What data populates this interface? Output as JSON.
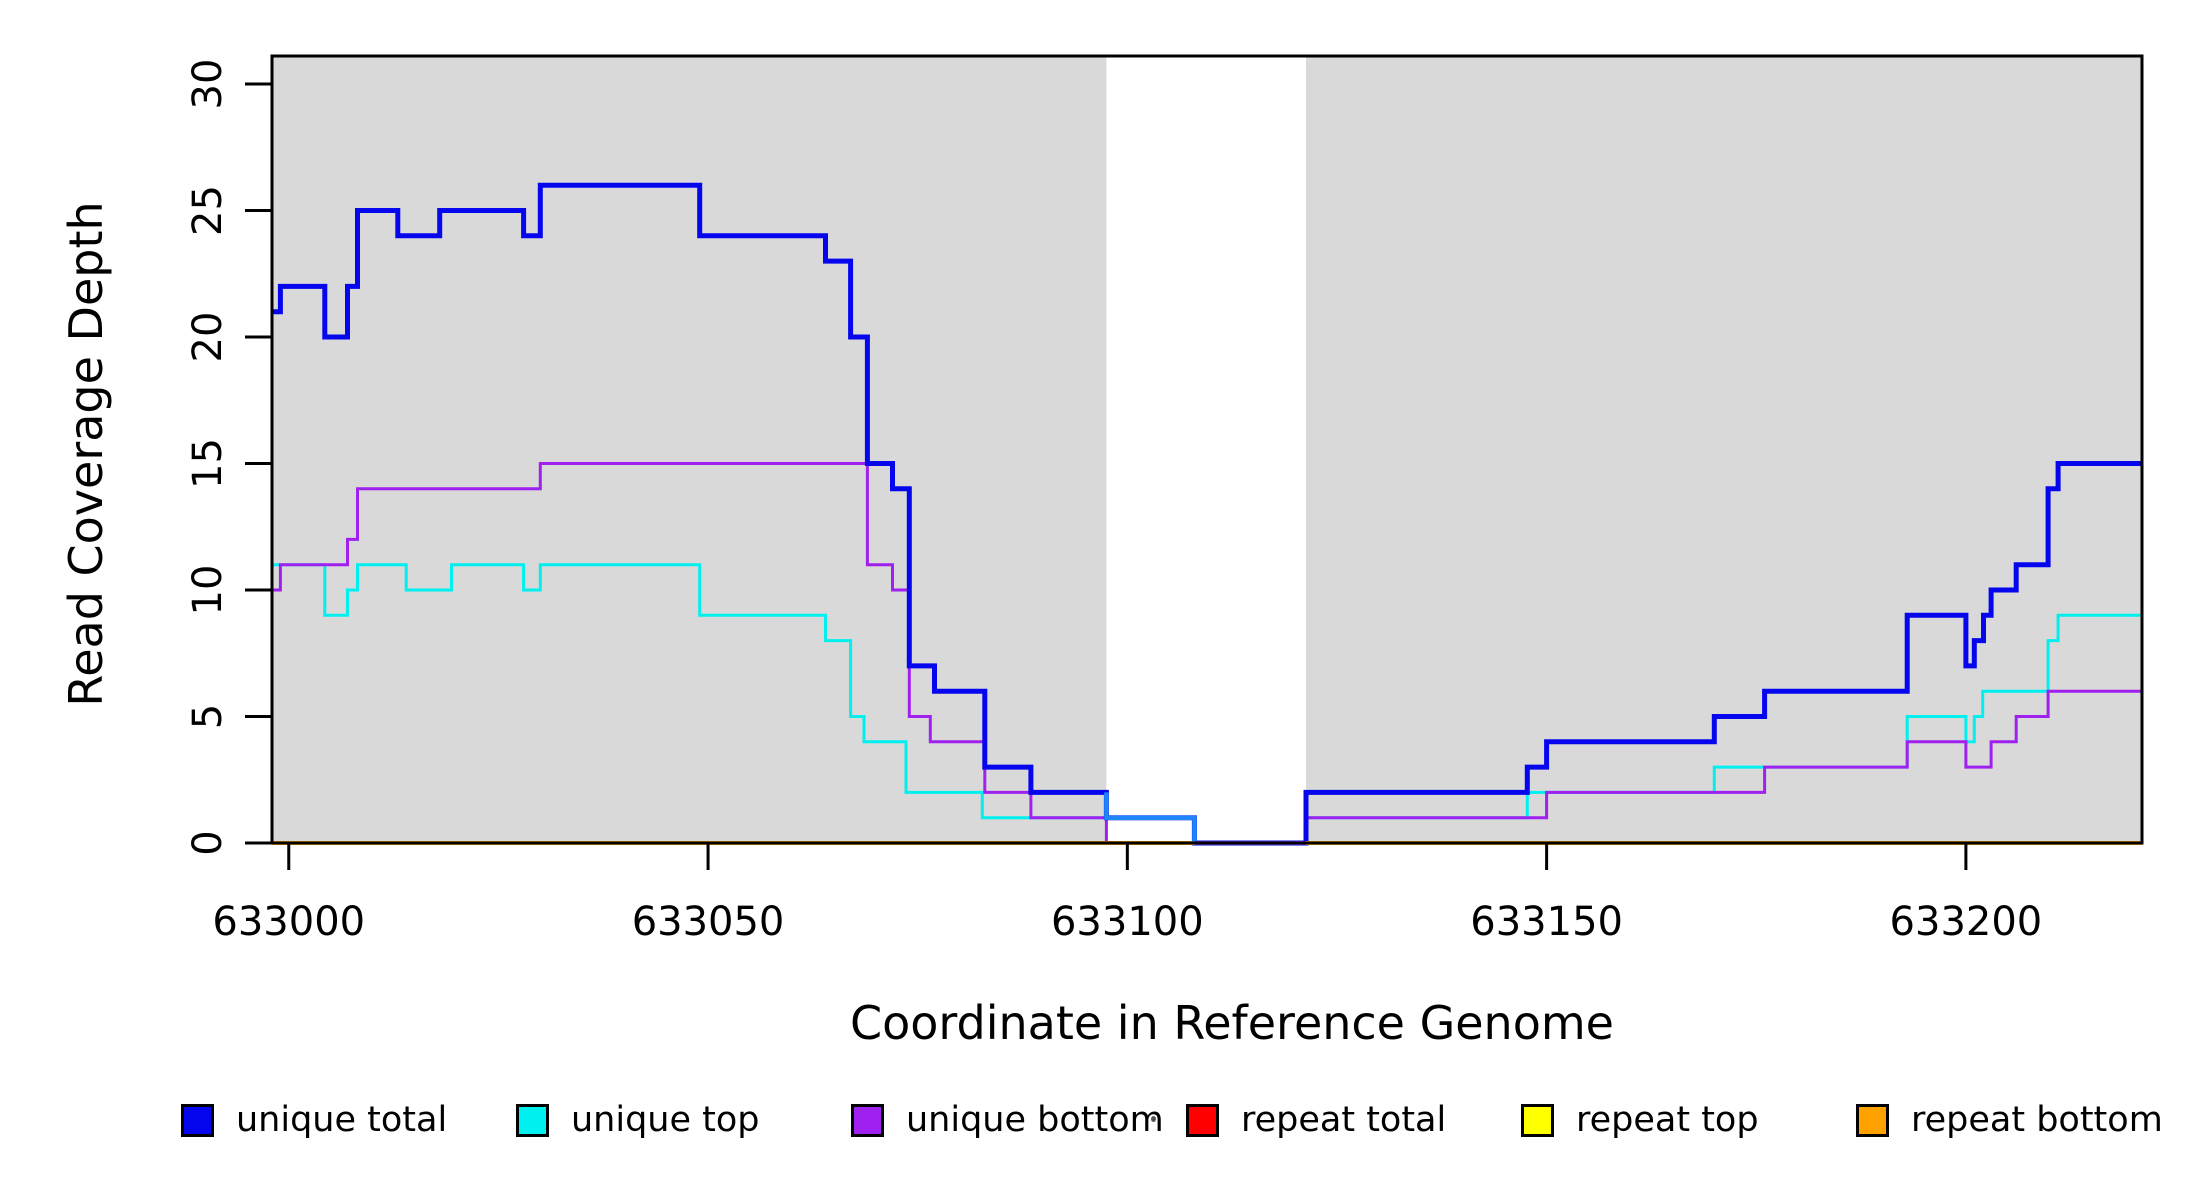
{
  "figure": {
    "y_axis_title": "Read Coverage Depth",
    "x_axis_title": "Coordinate in Reference Genome"
  },
  "colors": {
    "plot_background": "#d9d9d9",
    "gap_background": "#ffffff",
    "axis": "#000000",
    "unique_total": "#0505ee",
    "unique_top": "#00f0f0",
    "unique_bottom": "#a020f0",
    "repeat_total": "#ff0000",
    "repeat_top": "#ffff00",
    "repeat_bottom": "#ffa200",
    "overlap_blue": "#1e86fa",
    "zero_pink": "#f96a8d",
    "zero_violet": "#6638f0"
  },
  "legend": {
    "items": [
      {
        "label": "unique total",
        "color": "#0505ee"
      },
      {
        "label": "unique top",
        "color": "#00f0f0"
      },
      {
        "label": "unique bottom",
        "color": "#a020f0"
      },
      {
        "label": "repeat total",
        "color": "#ff0000"
      },
      {
        "label": "repeat top",
        "color": "#ffff00"
      },
      {
        "label": "repeat bottom",
        "color": "#ffa200"
      }
    ]
  },
  "chart_data": {
    "type": "line",
    "subtype": "step-hv",
    "title": "",
    "xlabel": "Coordinate in Reference Genome",
    "ylabel": "Read Coverage Depth",
    "xlim": [
      632998,
      633221
    ],
    "ylim": [
      0,
      31
    ],
    "x_ticks": [
      633000,
      633050,
      633100,
      633150,
      633200
    ],
    "y_ticks": [
      0,
      5,
      10,
      15,
      20,
      25,
      30
    ],
    "grid": false,
    "legend_position": "bottom",
    "shaded_regions": [
      {
        "start": 632998,
        "end": 633097.5
      },
      {
        "start": 633121.3,
        "end": 633221
      }
    ],
    "gap_region": {
      "start": 633097.5,
      "end": 633121.3
    },
    "series": [
      {
        "name": "repeat total",
        "color": "#ff0000",
        "width": 3,
        "points": [
          [
            632998,
            0
          ]
        ],
        "end": 633221
      },
      {
        "name": "repeat top",
        "color": "#ffff00",
        "width": 3,
        "points": [
          [
            632998,
            0
          ]
        ],
        "end": 633221
      },
      {
        "name": "unique top",
        "color": "#00f0f0",
        "width": 3,
        "points": [
          [
            632998,
            11
          ],
          [
            633004.3,
            9
          ],
          [
            633007,
            10
          ],
          [
            633008.2,
            11
          ],
          [
            633014,
            10
          ],
          [
            633019.4,
            11
          ],
          [
            633028,
            10
          ],
          [
            633030,
            11
          ],
          [
            633049,
            9
          ],
          [
            633064,
            8
          ],
          [
            633067,
            5
          ],
          [
            633068.6,
            4
          ],
          [
            633073.6,
            2
          ],
          [
            633082.7,
            1
          ],
          [
            633108,
            0
          ],
          [
            633121.3,
            1
          ],
          [
            633147.7,
            2
          ],
          [
            633170,
            3
          ],
          [
            633193,
            5
          ],
          [
            633200,
            4
          ],
          [
            633201,
            5
          ],
          [
            633202,
            6
          ],
          [
            633209.8,
            8
          ],
          [
            633211,
            9
          ]
        ],
        "end": 633221
      },
      {
        "name": "unique bottom",
        "color": "#a020f0",
        "width": 3,
        "points": [
          [
            632998,
            10
          ],
          [
            632999,
            11
          ],
          [
            633007,
            12
          ],
          [
            633008.2,
            14
          ],
          [
            633030,
            15
          ],
          [
            633069,
            11
          ],
          [
            633072,
            10
          ],
          [
            633074,
            5
          ],
          [
            633076.5,
            4
          ],
          [
            633083,
            2
          ],
          [
            633088.5,
            1
          ],
          [
            633097.5,
            0
          ],
          [
            633121.3,
            1
          ],
          [
            633150,
            2
          ],
          [
            633176,
            3
          ],
          [
            633193,
            4
          ],
          [
            633200,
            3
          ],
          [
            633203,
            4
          ],
          [
            633206,
            5
          ],
          [
            633209.8,
            6
          ]
        ],
        "end": 633221
      },
      {
        "name": "unique total",
        "color": "#0505ee",
        "width": 5,
        "points": [
          [
            632998,
            21
          ],
          [
            632999,
            22
          ],
          [
            633004.3,
            20
          ],
          [
            633007,
            22
          ],
          [
            633008.2,
            25
          ],
          [
            633013,
            24
          ],
          [
            633018,
            25
          ],
          [
            633028,
            24
          ],
          [
            633030,
            26
          ],
          [
            633049,
            24
          ],
          [
            633064,
            23
          ],
          [
            633067,
            20
          ],
          [
            633069,
            15
          ],
          [
            633072,
            14
          ],
          [
            633074,
            7
          ],
          [
            633077,
            6
          ],
          [
            633083,
            3
          ],
          [
            633088.5,
            2
          ],
          [
            633097.5,
            1
          ],
          [
            633108,
            0
          ],
          [
            633121.3,
            2
          ],
          [
            633147.7,
            3
          ],
          [
            633150,
            4
          ],
          [
            633170,
            5
          ],
          [
            633176,
            6
          ],
          [
            633193,
            9
          ],
          [
            633200,
            7
          ],
          [
            633201,
            8
          ],
          [
            633202.1,
            9
          ],
          [
            633203,
            10
          ],
          [
            633206,
            11
          ],
          [
            633209.8,
            14
          ],
          [
            633211,
            15
          ]
        ],
        "end": 633221
      },
      {
        "name": "repeat bottom",
        "color": "#ffa200",
        "width": 4,
        "points": [
          [
            632998,
            0
          ]
        ],
        "end": 633221
      }
    ],
    "overlap_segment": {
      "start": 633097.5,
      "end": 633108,
      "value": 1,
      "enter_value": 2,
      "exit_value": 0,
      "color": "#1e86fa",
      "width": 4.5
    },
    "zero_overlay_segments": [
      {
        "start": 633097.5,
        "end": 633108,
        "value": 0,
        "color": "#f96a8d",
        "width": 3
      },
      {
        "start": 633108,
        "end": 633121.3,
        "value": 0,
        "color": "#6638f0",
        "width": 4
      }
    ]
  }
}
